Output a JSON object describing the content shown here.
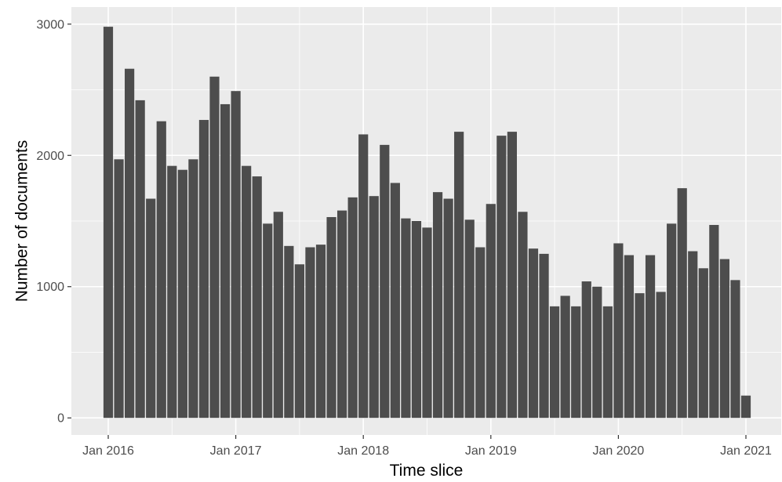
{
  "chart_data": {
    "type": "bar",
    "xlabel": "Time slice",
    "ylabel": "Number of documents",
    "x_ticks": [
      "Jan 2016",
      "Jan 2017",
      "Jan 2018",
      "Jan 2019",
      "Jan 2020",
      "Jan 2021"
    ],
    "y_ticks": [
      0,
      1000,
      2000,
      3000
    ],
    "ylim": [
      -130,
      3130
    ],
    "grid": true,
    "colors": {
      "bar": "#4d4d4d",
      "panel": "#ebebeb",
      "grid": "#ffffff"
    },
    "categories": [
      "2016-01",
      "2016-02",
      "2016-03",
      "2016-04",
      "2016-05",
      "2016-06",
      "2016-07",
      "2016-08",
      "2016-09",
      "2016-10",
      "2016-11",
      "2016-12",
      "2017-01",
      "2017-02",
      "2017-03",
      "2017-04",
      "2017-05",
      "2017-06",
      "2017-07",
      "2017-08",
      "2017-09",
      "2017-10",
      "2017-11",
      "2017-12",
      "2018-01",
      "2018-02",
      "2018-03",
      "2018-04",
      "2018-05",
      "2018-06",
      "2018-07",
      "2018-08",
      "2018-09",
      "2018-10",
      "2018-11",
      "2018-12",
      "2019-01",
      "2019-02",
      "2019-03",
      "2019-04",
      "2019-05",
      "2019-06",
      "2019-07",
      "2019-08",
      "2019-09",
      "2019-10",
      "2019-11",
      "2019-12",
      "2020-01",
      "2020-02",
      "2020-03",
      "2020-04",
      "2020-05",
      "2020-06",
      "2020-07",
      "2020-08",
      "2020-09",
      "2020-10",
      "2020-11",
      "2020-12",
      "2021-01"
    ],
    "values": [
      2980,
      1970,
      2660,
      2420,
      1670,
      2260,
      1920,
      1890,
      1970,
      2270,
      2600,
      2390,
      2490,
      1920,
      1840,
      1480,
      1570,
      1310,
      1170,
      1300,
      1320,
      1530,
      1580,
      1680,
      2160,
      1690,
      2080,
      1790,
      1520,
      1500,
      1450,
      1720,
      1670,
      2180,
      1510,
      1300,
      1630,
      2150,
      2180,
      1570,
      1290,
      1250,
      850,
      930,
      850,
      1040,
      1000,
      850,
      1330,
      1240,
      950,
      1240,
      960,
      1480,
      1750,
      1270,
      1140,
      1470,
      1210,
      1050,
      170
    ]
  }
}
